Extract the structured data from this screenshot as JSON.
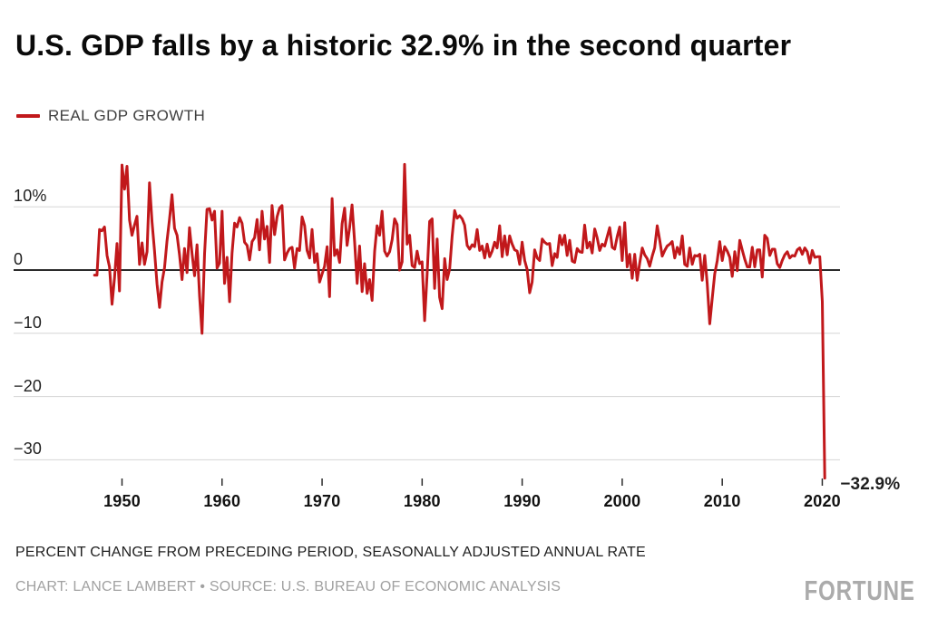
{
  "header": {
    "title": "U.S. GDP falls by a historic 32.9% in the second quarter"
  },
  "legend": {
    "label": "REAL GDP GROWTH",
    "color": "#c1181b"
  },
  "chart_data": {
    "type": "line",
    "title": "U.S. GDP falls by a historic 32.9% in the second quarter",
    "xlabel": "",
    "ylabel": "Percent change from preceding period (SAAR)",
    "unit": "%",
    "grid": "horizontal",
    "legend_position": "top-left",
    "xlim": [
      1946.5,
      2021
    ],
    "ylim": [
      -34,
      17.5
    ],
    "x_start": 1947.25,
    "x_step": 0.25,
    "x_ticks": [
      1950,
      1960,
      1970,
      1980,
      1990,
      2000,
      2010,
      2020
    ],
    "y_ticks": [
      {
        "value": 10,
        "label": "10%"
      },
      {
        "value": 0,
        "label": "0"
      },
      {
        "value": -10,
        "label": "−10"
      },
      {
        "value": -20,
        "label": "−20"
      },
      {
        "value": -30,
        "label": "−30"
      }
    ],
    "annotation": {
      "label": "−32.9%",
      "x": 2020.25,
      "y": -32.9
    },
    "colors": {
      "line": "#c1181b",
      "gridline": "#d5d5d5",
      "zero_line": "#2b2b2b"
    },
    "series": [
      {
        "name": "REAL GDP GROWTH",
        "color": "#c1181b",
        "values": [
          -0.8,
          -0.8,
          6.4,
          6.2,
          6.8,
          2.3,
          0.5,
          -5.4,
          -1.3,
          4.2,
          -3.3,
          16.6,
          12.8,
          16.4,
          7.9,
          5.5,
          7.1,
          8.5,
          0.9,
          4.3,
          0.9,
          2.9,
          13.8,
          7.6,
          3.1,
          -2.2,
          -5.9,
          -1.9,
          0.4,
          4.6,
          8.1,
          11.9,
          6.6,
          5.5,
          2.4,
          -1.5,
          3.4,
          -0.4,
          6.7,
          2.6,
          -0.9,
          4.0,
          -4.1,
          -10.0,
          2.6,
          9.6,
          9.7,
          7.9,
          9.3,
          0.3,
          1.1,
          9.3,
          -2.1,
          2.0,
          -5.0,
          2.7,
          7.4,
          6.8,
          8.3,
          7.4,
          4.4,
          3.9,
          1.6,
          4.5,
          5.1,
          8.0,
          3.2,
          9.3,
          4.9,
          6.9,
          1.2,
          10.2,
          5.6,
          8.4,
          9.8,
          10.2,
          1.6,
          2.7,
          3.4,
          3.6,
          0.3,
          3.4,
          3.1,
          8.4,
          7.0,
          3.1,
          1.9,
          6.4,
          1.2,
          2.6,
          -1.9,
          -0.6,
          0.6,
          3.7,
          -4.2,
          11.3,
          2.3,
          3.2,
          1.2,
          7.3,
          9.8,
          3.9,
          6.7,
          10.3,
          4.5,
          -2.1,
          3.8,
          -3.4,
          1.0,
          -3.7,
          -1.5,
          -4.8,
          3.0,
          7.0,
          5.5,
          9.3,
          3.0,
          2.2,
          2.9,
          4.8,
          8.1,
          7.2,
          0.0,
          1.3,
          16.7,
          4.1,
          5.5,
          0.7,
          0.4,
          3.0,
          1.0,
          1.3,
          -8.0,
          -0.5,
          7.7,
          8.1,
          -2.9,
          4.9,
          -4.3,
          -6.1,
          1.8,
          -1.5,
          0.2,
          5.3,
          9.4,
          8.2,
          8.6,
          8.1,
          7.1,
          3.9,
          3.3,
          4.0,
          3.7,
          6.4,
          3.1,
          3.8,
          1.9,
          4.1,
          2.1,
          3.0,
          4.4,
          3.5,
          7.0,
          2.1,
          5.4,
          2.4,
          5.4,
          4.1,
          3.2,
          3.0,
          0.9,
          4.4,
          1.5,
          0.1,
          -3.6,
          -1.9,
          3.2,
          1.9,
          1.5,
          4.9,
          4.4,
          4.1,
          4.2,
          0.7,
          2.6,
          2.0,
          5.5,
          4.0,
          5.5,
          2.3,
          4.7,
          1.4,
          1.2,
          3.4,
          2.9,
          2.8,
          7.1,
          3.5,
          4.4,
          2.7,
          6.5,
          5.1,
          3.1,
          4.1,
          3.8,
          5.3,
          6.7,
          3.6,
          3.3,
          5.3,
          6.8,
          1.5,
          7.5,
          0.5,
          2.5,
          -1.3,
          2.5,
          -1.6,
          1.1,
          3.5,
          2.4,
          1.8,
          0.6,
          2.2,
          3.5,
          7.0,
          4.7,
          2.2,
          3.1,
          3.8,
          4.1,
          4.5,
          1.9,
          3.6,
          2.5,
          5.4,
          0.9,
          0.6,
          3.5,
          0.9,
          2.3,
          2.2,
          2.5,
          -1.6,
          2.3,
          -2.1,
          -8.5,
          -4.4,
          -0.6,
          1.5,
          4.5,
          1.5,
          3.7,
          3.0,
          2.0,
          -1.0,
          2.9,
          -0.1,
          4.7,
          3.2,
          1.7,
          0.5,
          0.5,
          3.6,
          0.5,
          3.2,
          3.2,
          -1.1,
          5.5,
          5.0,
          2.3,
          3.3,
          3.3,
          1.0,
          0.4,
          1.5,
          2.4,
          2.9,
          1.9,
          2.3,
          2.2,
          3.2,
          3.5,
          2.5,
          3.5,
          2.9,
          1.1,
          3.1,
          2.0,
          2.1,
          2.1,
          -5.0,
          -32.9
        ]
      }
    ]
  },
  "footer": {
    "note": "PERCENT CHANGE FROM PRECEDING PERIOD, SEASONALLY ADJUSTED ANNUAL RATE",
    "byline": "CHART: LANCE LAMBERT • SOURCE: U.S. BUREAU OF ECONOMIC ANALYSIS",
    "brand": "FORTUNE"
  }
}
